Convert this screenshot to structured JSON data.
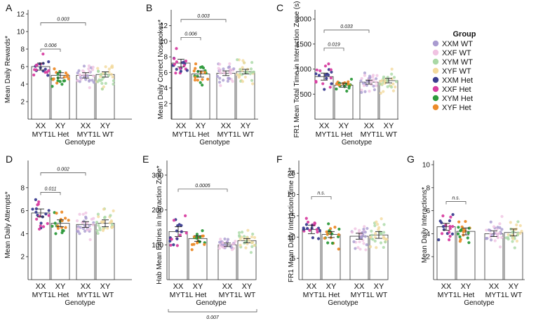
{
  "legend": {
    "title": "Group",
    "items": [
      {
        "label": "XXM WT",
        "color": "#a99bd0"
      },
      {
        "label": "XXF WT",
        "color": "#f0c3e2"
      },
      {
        "label": "XYM WT",
        "color": "#a9d8a5"
      },
      {
        "label": "XYF WT",
        "color": "#f3da9c"
      },
      {
        "label": "XXM Het",
        "color": "#3b3d8f"
      },
      {
        "label": "XXF Het",
        "color": "#d83fa1"
      },
      {
        "label": "XYM Het",
        "color": "#2e9a3c"
      },
      {
        "label": "XYF Het",
        "color": "#ec8b2a"
      }
    ]
  },
  "chart_data": [
    {
      "panel": "A",
      "type": "bar",
      "ylabel": "Mean Daily Rewards*",
      "xlabel": "Genotype",
      "ylim": [
        0,
        12
      ],
      "yticks": [
        2,
        4,
        6,
        8,
        10,
        12
      ],
      "categories": [
        "XX",
        "XY",
        "XX",
        "XY"
      ],
      "groups": [
        "MYT1L Het",
        "MYT1L WT"
      ],
      "values": [
        6.0,
        5.0,
        5.0,
        5.1
      ],
      "errors": [
        0.4,
        0.3,
        0.3,
        0.3
      ],
      "spread": [
        1.6,
        1.2,
        1.5,
        1.7
      ],
      "significance": [
        {
          "label": "0.006",
          "between": [
            0,
            1
          ],
          "y": 8.0
        },
        {
          "label": "0.003",
          "between": [
            0,
            2
          ],
          "y": 11.0
        }
      ]
    },
    {
      "panel": "B",
      "type": "bar",
      "ylabel": "Mean Daily Correct Nosepokes*",
      "xlabel": "Genotype",
      "ylim": [
        0,
        13.5
      ],
      "yticks": [
        2,
        4,
        6,
        8,
        10,
        12
      ],
      "categories": [
        "XX",
        "XY",
        "XX",
        "XY"
      ],
      "groups": [
        "MYT1L Het",
        "MYT1L WT"
      ],
      "values": [
        7.2,
        5.8,
        5.9,
        6.1
      ],
      "errors": [
        0.5,
        0.4,
        0.3,
        0.3
      ],
      "spread": [
        1.8,
        1.4,
        1.9,
        2.0
      ],
      "significance": [
        {
          "label": "0.006",
          "between": [
            0,
            1
          ],
          "y": 10.5
        },
        {
          "label": "0.003",
          "between": [
            0,
            2
          ],
          "y": 12.8
        }
      ]
    },
    {
      "panel": "C",
      "type": "bar",
      "ylabel": "FR1 Mean Total Time in Interaction Zone (s)",
      "xlabel": "Genotype",
      "ylim": [
        0,
        2100
      ],
      "yticks": [
        500,
        1000,
        1500,
        2000
      ],
      "categories": [
        "XX",
        "XY",
        "XX",
        "XY"
      ],
      "groups": [
        "MYT1L Het",
        "MYT1L WT"
      ],
      "values": [
        850,
        680,
        740,
        770
      ],
      "errors": [
        70,
        40,
        40,
        45
      ],
      "spread": [
        280,
        140,
        210,
        230
      ],
      "significance": [
        {
          "label": "0.019",
          "between": [
            0,
            1
          ],
          "y": 1420
        },
        {
          "label": "0.033",
          "between": [
            0,
            2
          ],
          "y": 1780
        }
      ]
    },
    {
      "panel": "D",
      "type": "bar",
      "ylabel": "Mean Daily Attempts*",
      "xlabel": "Genotype",
      "ylim": [
        0,
        10
      ],
      "yticks": [
        2,
        4,
        6,
        8
      ],
      "categories": [
        "XX",
        "XY",
        "XX",
        "XY"
      ],
      "groups": [
        "MYT1L Het",
        "MYT1L WT"
      ],
      "values": [
        5.8,
        4.9,
        4.8,
        4.9
      ],
      "errors": [
        0.35,
        0.3,
        0.25,
        0.3
      ],
      "spread": [
        1.5,
        1.2,
        1.4,
        1.5
      ],
      "significance": [
        {
          "label": "0.011",
          "between": [
            0,
            1
          ],
          "y": 7.6
        },
        {
          "label": "0.002",
          "between": [
            0,
            2
          ],
          "y": 9.3
        }
      ]
    },
    {
      "panel": "E",
      "type": "bar",
      "ylabel": "Hab Mean Entries in Interaction Zone*",
      "xlabel": "Genotype",
      "ylim": [
        0,
        330
      ],
      "yticks": [
        100,
        200,
        300
      ],
      "categories": [
        "XX",
        "XY",
        "XX",
        "XY"
      ],
      "groups": [
        "MYT1L Het",
        "MYT1L WT"
      ],
      "values": [
        138,
        118,
        100,
        112
      ],
      "errors": [
        14,
        8,
        5,
        6
      ],
      "spread": [
        55,
        28,
        22,
        30
      ],
      "significance": [
        {
          "label": "0.0005",
          "between": [
            0,
            2
          ],
          "y": 260
        },
        {
          "label": "0.007",
          "between": [
            0,
            3
          ],
          "y": -70,
          "below": true
        }
      ]
    },
    {
      "panel": "F",
      "type": "bar",
      "ylabel": "FR1 Mean Daily Interaction Time (s)*",
      "xlabel": "Genotype",
      "ylim": [
        0,
        27
      ],
      "yticks": [
        5,
        10,
        15,
        20,
        25
      ],
      "categories": [
        "XX",
        "XY",
        "XX",
        "XY"
      ],
      "groups": [
        "MYT1L Het",
        "MYT1L WT"
      ],
      "values": [
        11.8,
        10.6,
        10.2,
        10.5
      ],
      "errors": [
        1.0,
        0.7,
        0.7,
        0.8
      ],
      "spread": [
        4.2,
        3.0,
        4.0,
        4.2
      ],
      "significance": [
        {
          "label": "n.s.",
          "between": [
            0,
            1
          ],
          "y": 19.5
        }
      ]
    },
    {
      "panel": "G",
      "type": "bar",
      "ylabel": "Mean Daily Interactions*",
      "xlabel": "Genotype",
      "ylim": [
        0,
        10
      ],
      "yticks": [
        2,
        4,
        6,
        8,
        10
      ],
      "categories": [
        "XX",
        "XY",
        "XX",
        "XY"
      ],
      "groups": [
        "MYT1L Het",
        "MYT1L WT"
      ],
      "values": [
        4.6,
        4.2,
        4.0,
        4.1
      ],
      "errors": [
        0.3,
        0.3,
        0.25,
        0.3
      ],
      "spread": [
        1.3,
        1.1,
        1.3,
        1.4
      ],
      "significance": [
        {
          "label": "n.s.",
          "between": [
            0,
            1
          ],
          "y": 6.8
        }
      ]
    }
  ]
}
